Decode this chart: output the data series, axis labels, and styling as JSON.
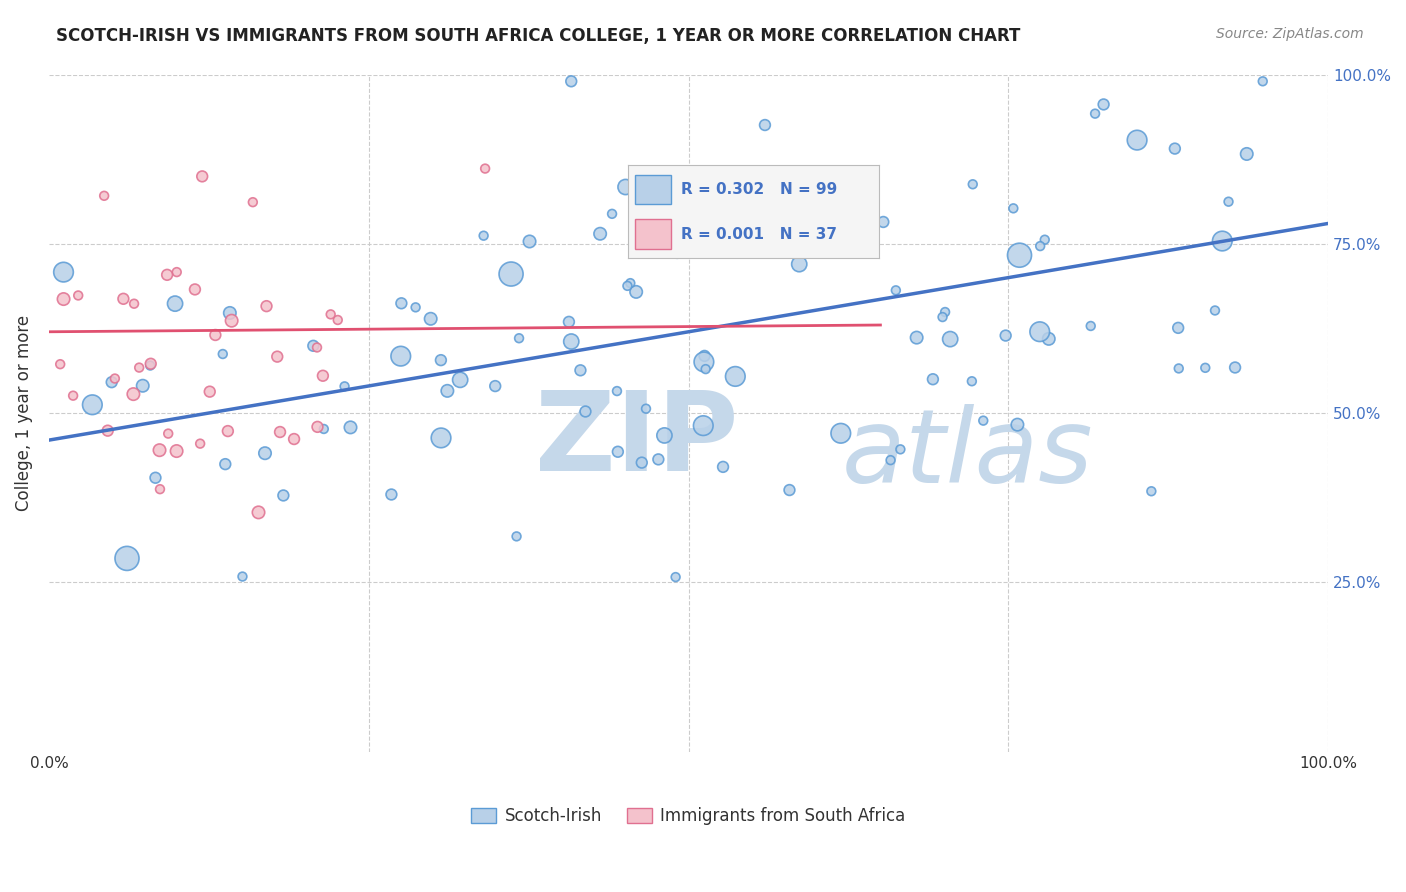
{
  "title": "SCOTCH-IRISH VS IMMIGRANTS FROM SOUTH AFRICA COLLEGE, 1 YEAR OR MORE CORRELATION CHART",
  "source_text": "Source: ZipAtlas.com",
  "ylabel": "College, 1 year or more",
  "legend_entry1": "Scotch-Irish",
  "legend_entry2": "Immigrants from South Africa",
  "R1": 0.302,
  "N1": 99,
  "R2": 0.001,
  "N2": 37,
  "color_blue_fill": "#b8d0e8",
  "color_blue_edge": "#5b9bd5",
  "color_blue_line": "#4472c4",
  "color_pink_fill": "#f4c2cc",
  "color_pink_edge": "#e07090",
  "color_pink_line": "#e05070",
  "color_blue_text": "#4472c4",
  "color_grid": "#cccccc",
  "background_color": "#ffffff",
  "xlim": [
    0.0,
    1.0
  ],
  "ylim": [
    0.0,
    1.0
  ],
  "grid_vals": [
    0.25,
    0.5,
    0.75,
    1.0
  ],
  "blue_trend_x": [
    0.0,
    1.0
  ],
  "blue_trend_y": [
    0.46,
    0.78
  ],
  "pink_trend_x": [
    0.0,
    0.65
  ],
  "pink_trend_y": [
    0.62,
    0.63
  ],
  "watermark_ZIP_color": "#c5d8ea",
  "watermark_atlas_color": "#c5d8ea"
}
